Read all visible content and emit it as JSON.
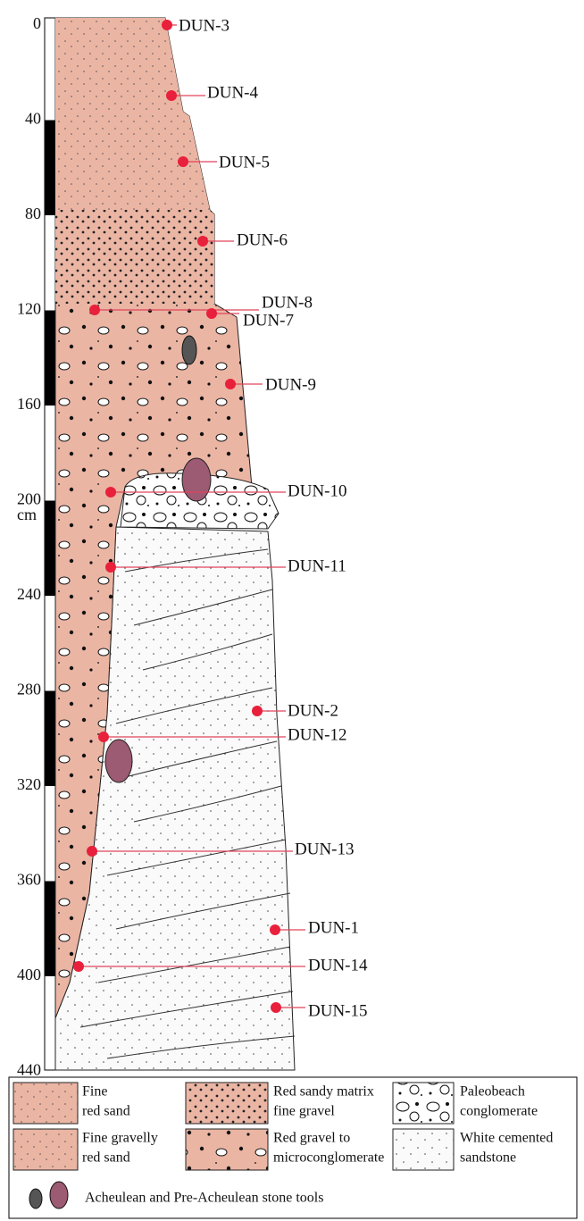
{
  "scale": {
    "unit": "cm",
    "ticks": [
      0,
      40,
      80,
      120,
      160,
      200,
      240,
      280,
      320,
      360,
      400,
      440
    ]
  },
  "samples": [
    "DUN-3",
    "DUN-4",
    "DUN-5",
    "DUN-6",
    "DUN-8",
    "DUN-7",
    "DUN-9",
    "DUN-10",
    "DUN-11",
    "DUN-2",
    "DUN-12",
    "DUN-13",
    "DUN-1",
    "DUN-14",
    "DUN-15"
  ],
  "legend": {
    "items": [
      [
        "Fine",
        "red sand"
      ],
      [
        "Red sandy matrix",
        "fine gravel"
      ],
      [
        "Paleobeach",
        "conglomerate"
      ],
      [
        "Fine gravelly",
        "red sand"
      ],
      [
        "Red gravel to",
        "microconglomerate"
      ],
      [
        "White cemented",
        "sandstone"
      ]
    ],
    "tools": "Acheulean and Pre-Acheulean stone tools"
  }
}
